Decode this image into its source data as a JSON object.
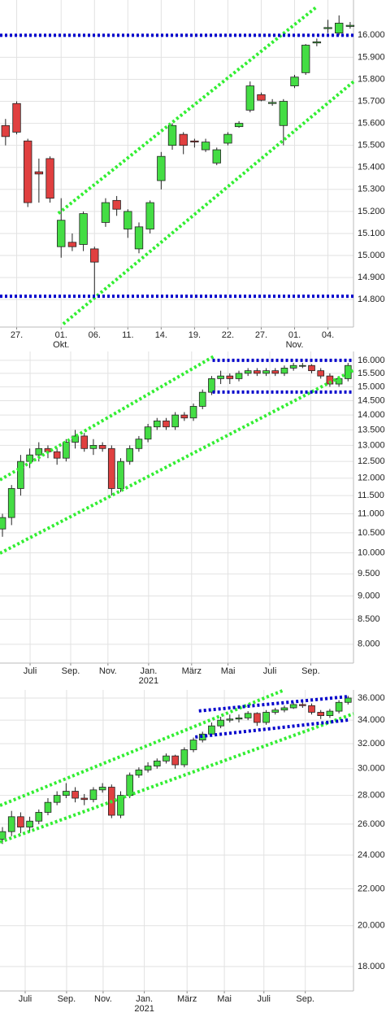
{
  "chart_data": [
    {
      "type": "candlestick",
      "log": false,
      "up_color": "#44dd44",
      "down_color": "#e04040",
      "grid": true,
      "open": [
        15590,
        15690,
        15520,
        15380,
        15440,
        15040,
        15060,
        15050,
        15030,
        15150,
        15250,
        15120,
        15030,
        15120,
        15340,
        15500,
        15550,
        15520,
        15480,
        15420,
        15510,
        15585,
        15660,
        15730,
        15690,
        15590,
        15770,
        15830,
        15965,
        16030,
        16010,
        16040
      ],
      "high": [
        15620,
        15700,
        15530,
        15440,
        15450,
        15260,
        15100,
        15200,
        15040,
        15260,
        15270,
        15210,
        15150,
        15250,
        15470,
        15600,
        15560,
        15530,
        15530,
        15490,
        15560,
        15610,
        15790,
        15740,
        15710,
        15710,
        15820,
        15960,
        15985,
        16070,
        16090,
        16060
      ],
      "low": [
        15500,
        15550,
        15220,
        15240,
        15240,
        14990,
        15020,
        15020,
        14820,
        15130,
        15180,
        15080,
        15010,
        15100,
        15300,
        15480,
        15460,
        15490,
        15470,
        15410,
        15500,
        15580,
        15650,
        15700,
        15680,
        15500,
        15760,
        15820,
        15950,
        16010,
        16000,
        16030
      ],
      "close": [
        15540,
        15560,
        15240,
        15370,
        15260,
        15160,
        15040,
        15190,
        14970,
        15240,
        15210,
        15200,
        15130,
        15240,
        15450,
        15590,
        15500,
        15515,
        15515,
        15480,
        15550,
        15600,
        15770,
        15705,
        15695,
        15700,
        15810,
        15955,
        15970,
        16035,
        16055,
        16045
      ],
      "xlim": [
        -0.5,
        31.3
      ],
      "ylim": [
        14675,
        16160
      ],
      "yticks": [
        {
          "value": 14800,
          "label": "14.800"
        },
        {
          "value": 14900,
          "label": "14.900"
        },
        {
          "value": 15000,
          "label": "15.000"
        },
        {
          "value": 15100,
          "label": "15.100"
        },
        {
          "value": 15200,
          "label": "15.200"
        },
        {
          "value": 15300,
          "label": "15.300"
        },
        {
          "value": 15400,
          "label": "15.400"
        },
        {
          "value": 15500,
          "label": "15.500"
        },
        {
          "value": 15600,
          "label": "15.600"
        },
        {
          "value": 15700,
          "label": "15.700"
        },
        {
          "value": 15800,
          "label": "15.800"
        },
        {
          "value": 15900,
          "label": "15.900"
        },
        {
          "value": 16000,
          "label": "16.000"
        }
      ],
      "xticks": [
        {
          "value": 1,
          "label": "27."
        },
        {
          "value": 5,
          "label": "01.",
          "sublabel": "Okt."
        },
        {
          "value": 8,
          "label": "06."
        },
        {
          "value": 11,
          "label": "11."
        },
        {
          "value": 14,
          "label": "14."
        },
        {
          "value": 17,
          "label": "19."
        },
        {
          "value": 20,
          "label": "22."
        },
        {
          "value": 23,
          "label": "27."
        },
        {
          "value": 26,
          "label": "01.",
          "sublabel": "Nov."
        },
        {
          "value": 29,
          "label": "04."
        }
      ],
      "trendlines": [
        {
          "x": [
            4.75,
            28.0
          ],
          "values": [
            15191,
            16129
          ],
          "color": "#33ee33"
        },
        {
          "x": [
            5.19,
            31.3
          ],
          "values": [
            14689,
            15789
          ],
          "color": "#33ee33"
        },
        {
          "x": [
            -0.5,
            31.3
          ],
          "values": [
            16000,
            16000
          ],
          "color": "#0000cc"
        },
        {
          "x": [
            -0.5,
            31.3
          ],
          "values": [
            14815,
            14815
          ],
          "color": "#0000cc"
        }
      ]
    },
    {
      "type": "candlestick",
      "log": true,
      "up_color": "#44dd44",
      "down_color": "#e04040",
      "grid": true,
      "open": [
        10600,
        10900,
        11700,
        12500,
        12700,
        12900,
        12800,
        12600,
        13100,
        13300,
        12900,
        13000,
        12900,
        11700,
        12500,
        12900,
        13200,
        13600,
        13800,
        13600,
        14000,
        13900,
        14300,
        14800,
        15300,
        15400,
        15300,
        15500,
        15600,
        15500,
        15600,
        15500,
        15700,
        15800,
        15800,
        15600,
        15400,
        15100,
        15300
      ],
      "high": [
        11000,
        11800,
        12700,
        12900,
        13100,
        13000,
        12900,
        13200,
        13500,
        13400,
        13200,
        13100,
        13000,
        12600,
        13000,
        13300,
        13700,
        13900,
        13900,
        14100,
        14100,
        14400,
        14900,
        15400,
        15600,
        15500,
        15600,
        15700,
        15700,
        15700,
        15700,
        15800,
        15900,
        15900,
        15850,
        15700,
        15500,
        15400,
        15900
      ],
      "low": [
        10400,
        10700,
        11500,
        12300,
        12500,
        12600,
        12400,
        12500,
        12900,
        12800,
        12700,
        12800,
        11500,
        11600,
        12400,
        12800,
        13100,
        13500,
        13500,
        13500,
        13800,
        13800,
        14200,
        14700,
        15100,
        15100,
        15200,
        15400,
        15400,
        15400,
        15400,
        15400,
        15600,
        15700,
        15500,
        15300,
        15000,
        15000,
        15200
      ],
      "close": [
        10900,
        11700,
        12500,
        12700,
        12900,
        12800,
        12600,
        13100,
        13300,
        12900,
        13000,
        12900,
        11700,
        12500,
        12900,
        13200,
        13600,
        13800,
        13600,
        14000,
        13900,
        14300,
        14800,
        15300,
        15400,
        15300,
        15500,
        15600,
        15500,
        15600,
        15500,
        15700,
        15800,
        15800,
        15600,
        15400,
        15100,
        15300,
        15800
      ],
      "xlim": [
        -0.27,
        38.6
      ],
      "ylim": [
        7640,
        16350
      ],
      "yticks": [
        {
          "value": 8000,
          "label": "8.000"
        },
        {
          "value": 8500,
          "label": "8.500"
        },
        {
          "value": 9000,
          "label": "9.000"
        },
        {
          "value": 9500,
          "label": "9.500"
        },
        {
          "value": 10000,
          "label": "10.000"
        },
        {
          "value": 10500,
          "label": "10.500"
        },
        {
          "value": 11000,
          "label": "11.000"
        },
        {
          "value": 11500,
          "label": "11.500"
        },
        {
          "value": 12000,
          "label": "12.000"
        },
        {
          "value": 12500,
          "label": "12.500"
        },
        {
          "value": 13000,
          "label": "13.000"
        },
        {
          "value": 13500,
          "label": "13.500"
        },
        {
          "value": 14000,
          "label": "14.000"
        },
        {
          "value": 14500,
          "label": "14.500"
        },
        {
          "value": 15000,
          "label": "15.000"
        },
        {
          "value": 15500,
          "label": "15.500"
        },
        {
          "value": 16000,
          "label": "16.000"
        }
      ],
      "xticks": [
        {
          "value": 3.04,
          "label": "Juli"
        },
        {
          "value": 7.5,
          "label": "Sep."
        },
        {
          "value": 11.6,
          "label": "Nov."
        },
        {
          "value": 16.07,
          "label": "Jan.",
          "sublabel": "2021"
        },
        {
          "value": 20.8,
          "label": "März"
        },
        {
          "value": 24.8,
          "label": "Mai"
        },
        {
          "value": 29.4,
          "label": "Juli"
        },
        {
          "value": 33.9,
          "label": "Sep."
        }
      ],
      "trendlines": [
        {
          "x": [
            -0.27,
            23.4
          ],
          "values": [
            11950,
            16190
          ],
          "color": "#33ee33"
        },
        {
          "x": [
            -0.27,
            38.6
          ],
          "values": [
            9990,
            15620
          ],
          "color": "#33ee33"
        },
        {
          "x": [
            23.1,
            38.6
          ],
          "values": [
            16000,
            16000
          ],
          "color": "#0000cc"
        },
        {
          "x": [
            23.1,
            38.6
          ],
          "values": [
            14808,
            14808
          ],
          "color": "#0000cc"
        }
      ]
    },
    {
      "type": "candlestick",
      "log": true,
      "up_color": "#44dd44",
      "down_color": "#e04040",
      "grid": true,
      "open": [
        25000,
        25500,
        26500,
        25800,
        26200,
        26800,
        27500,
        28000,
        28300,
        27800,
        27700,
        28400,
        28600,
        26600,
        28000,
        29500,
        29900,
        30200,
        30600,
        31000,
        30300,
        31500,
        32300,
        32800,
        33500,
        34000,
        34100,
        34200,
        34600,
        33800,
        34700,
        34900,
        35100,
        35400,
        35300,
        34700,
        34400,
        34800,
        35600
      ],
      "high": [
        25800,
        26900,
        26800,
        26500,
        27000,
        27800,
        28300,
        28900,
        28600,
        28100,
        28600,
        28900,
        28800,
        28300,
        29700,
        30100,
        30500,
        30800,
        31200,
        31100,
        31700,
        32500,
        33000,
        33800,
        34300,
        34500,
        34500,
        34800,
        34700,
        34900,
        35100,
        35300,
        35600,
        35600,
        35500,
        34900,
        35000,
        35800,
        36200
      ],
      "low": [
        24700,
        25200,
        25400,
        25500,
        26000,
        26600,
        27300,
        27800,
        27500,
        27300,
        27500,
        28200,
        26400,
        26400,
        27800,
        29300,
        29700,
        30000,
        30400,
        30000,
        30100,
        31300,
        32100,
        32600,
        33300,
        33800,
        33800,
        34000,
        33500,
        33600,
        34500,
        34700,
        35000,
        35100,
        34500,
        34100,
        34200,
        34600,
        35400
      ],
      "close": [
        25500,
        26500,
        25800,
        26200,
        26800,
        27500,
        28000,
        28300,
        27800,
        27700,
        28400,
        28600,
        26600,
        28000,
        29500,
        29900,
        30200,
        30600,
        31000,
        30300,
        31500,
        32300,
        32800,
        33500,
        34000,
        34100,
        34200,
        34600,
        33800,
        34700,
        34900,
        35100,
        35400,
        35300,
        34700,
        34400,
        34800,
        35600,
        36000
      ],
      "xlim": [
        -0.27,
        38.6
      ],
      "ylim": [
        16900,
        36760
      ],
      "yticks": [
        {
          "value": 18000,
          "label": "18.000"
        },
        {
          "value": 20000,
          "label": "20.000"
        },
        {
          "value": 22000,
          "label": "22.000"
        },
        {
          "value": 24000,
          "label": "24.000"
        },
        {
          "value": 26000,
          "label": "26.000"
        },
        {
          "value": 28000,
          "label": "28.000"
        },
        {
          "value": 30000,
          "label": "30.000"
        },
        {
          "value": 32000,
          "label": "32.000"
        },
        {
          "value": 34000,
          "label": "34.000"
        },
        {
          "value": 36000,
          "label": "36.000"
        }
      ],
      "xticks": [
        {
          "value": 2.5,
          "label": "Juli"
        },
        {
          "value": 7.05,
          "label": "Sep."
        },
        {
          "value": 11.07,
          "label": "Nov."
        },
        {
          "value": 15.6,
          "label": "Jan.",
          "sublabel": "2021"
        },
        {
          "value": 20.3,
          "label": "März"
        },
        {
          "value": 24.4,
          "label": "Mai"
        },
        {
          "value": 28.75,
          "label": "Juli"
        },
        {
          "value": 33.3,
          "label": "Sep."
        }
      ],
      "trendlines": [
        {
          "x": [
            -0.27,
            31.0
          ],
          "values": [
            27280,
            36760
          ],
          "color": "#33ee33"
        },
        {
          "x": [
            -0.27,
            38.6
          ],
          "values": [
            24820,
            34570
          ],
          "color": "#33ee33"
        },
        {
          "x": [
            21.6,
            38.1
          ],
          "values": [
            34820,
            36150
          ],
          "color": "#0000cc"
        },
        {
          "x": [
            21.2,
            38.1
          ],
          "values": [
            32550,
            34020
          ],
          "color": "#0000cc"
        }
      ]
    }
  ]
}
